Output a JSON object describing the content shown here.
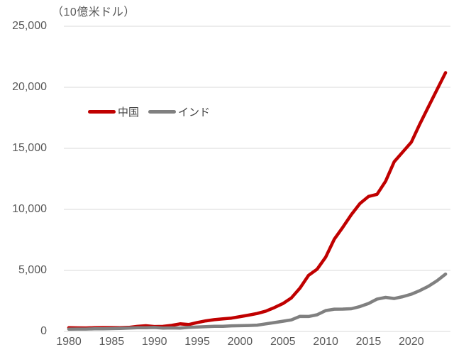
{
  "unit_label": "（10億米ドル）",
  "colors": {
    "china": "#C00000",
    "india": "#808080",
    "gridline": "#D9D9D9",
    "axis_text": "#595959",
    "legend_text": "#404040",
    "background": "#FFFFFF"
  },
  "legend": [
    {
      "label": "中国",
      "key": "china"
    },
    {
      "label": "インド",
      "key": "india"
    }
  ],
  "chart_data": {
    "type": "line",
    "title": "",
    "unit": "（10億米ドル）",
    "xlabel": "",
    "ylabel": "10億米ドル",
    "grid": "horizontal",
    "legend_position": "upper-left-inside",
    "ylim": [
      0,
      25000
    ],
    "yticks": [
      0,
      5000,
      10000,
      15000,
      20000,
      25000
    ],
    "xticks": [
      1980,
      1985,
      1990,
      1995,
      2000,
      2005,
      2010,
      2015,
      2020
    ],
    "x": [
      1980,
      1981,
      1982,
      1983,
      1984,
      1985,
      1986,
      1987,
      1988,
      1989,
      1990,
      1991,
      1992,
      1993,
      1994,
      1995,
      1996,
      1997,
      1998,
      1999,
      2000,
      2001,
      2002,
      2003,
      2004,
      2005,
      2006,
      2007,
      2008,
      2009,
      2010,
      2011,
      2012,
      2013,
      2014,
      2015,
      2016,
      2017,
      2018,
      2019,
      2020,
      2021,
      2022,
      2023,
      2024
    ],
    "series": [
      {
        "name": "中国",
        "key": "china",
        "color": "#C00000",
        "values": [
          300,
          290,
          285,
          305,
          315,
          315,
          300,
          330,
          415,
          465,
          400,
          415,
          495,
          620,
          565,
          735,
          865,
          965,
          1030,
          1095,
          1215,
          1340,
          1470,
          1660,
          1955,
          2285,
          2750,
          3550,
          4600,
          5100,
          6090,
          7550,
          8530,
          9570,
          10475,
          11060,
          11230,
          12310,
          13900,
          14700,
          15500,
          17000,
          18400,
          19800,
          21200
        ]
      },
      {
        "name": "インド",
        "key": "india",
        "color": "#808080",
        "values": [
          186,
          195,
          200,
          218,
          215,
          235,
          250,
          280,
          300,
          300,
          325,
          275,
          290,
          280,
          330,
          365,
          395,
          420,
          425,
          460,
          470,
          490,
          520,
          620,
          725,
          835,
          950,
          1240,
          1225,
          1365,
          1710,
          1825,
          1830,
          1860,
          2040,
          2290,
          2650,
          2790,
          2700,
          2850,
          3050,
          3350,
          3700,
          4150,
          4700
        ]
      }
    ]
  }
}
